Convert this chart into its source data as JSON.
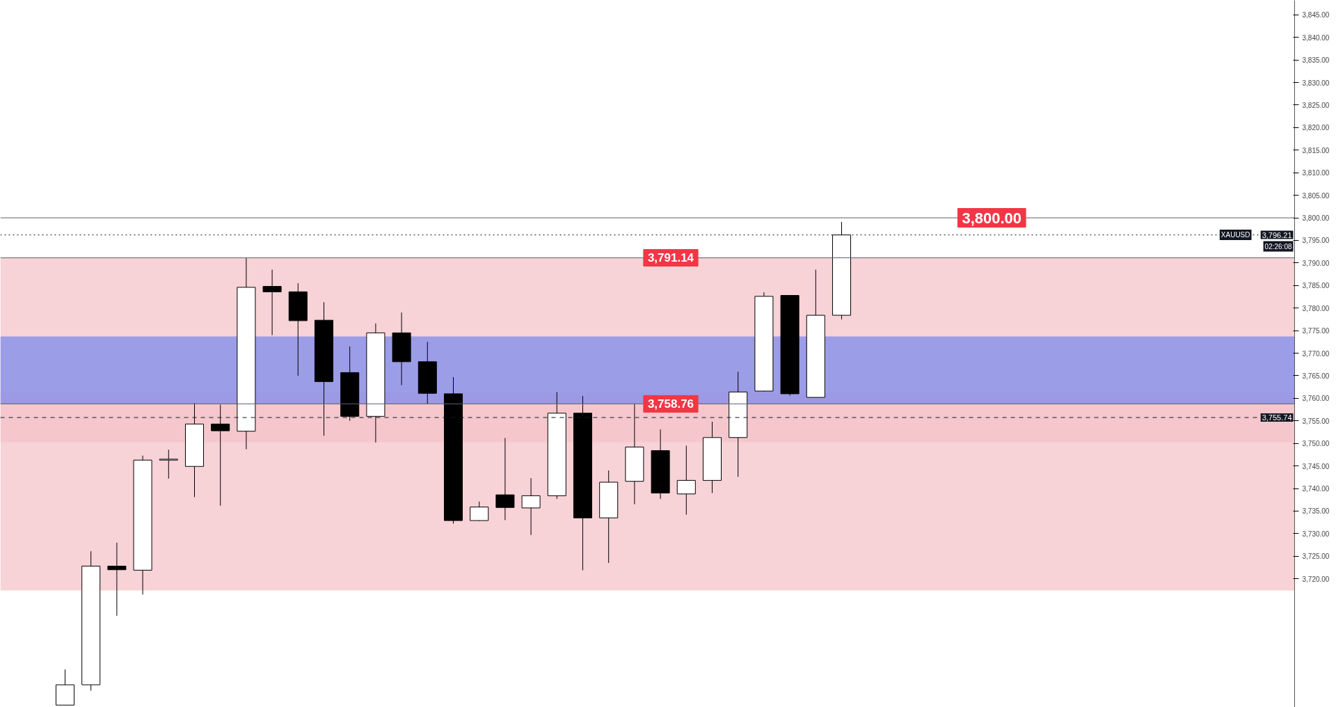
{
  "chart_data": {
    "type": "candlestick",
    "categories": [
      null,
      null,
      null,
      null,
      null,
      null,
      null,
      null,
      null,
      null,
      null,
      null,
      null,
      null,
      null,
      null,
      null,
      null,
      null,
      null,
      null,
      null,
      null,
      null,
      null,
      null,
      null,
      null,
      null,
      null,
      null,
      null,
      null,
      null,
      null,
      null,
      null,
      null,
      null,
      null,
      null,
      null,
      null,
      null,
      null,
      null,
      null,
      null,
      null,
      null
    ],
    "ohlc": [
      null,
      null,
      [
        3692.0,
        3699.9,
        3692.0,
        3696.5
      ],
      [
        3696.5,
        3726.1,
        3695.2,
        3722.8
      ],
      [
        3722.8,
        3728.0,
        3711.8,
        3722.0
      ],
      [
        3721.9,
        3747.3,
        3716.5,
        3746.3
      ],
      [
        3746.3,
        3748.6,
        3742.2,
        3746.5
      ],
      [
        3744.9,
        3758.9,
        3738.1,
        3754.3
      ],
      [
        3754.3,
        3758.6,
        3736.2,
        3752.8
      ],
      [
        3752.7,
        3791.14,
        3748.7,
        3784.6
      ],
      [
        3784.8,
        3788.5,
        3774.0,
        3783.6
      ],
      [
        3783.6,
        3785.5,
        3765.0,
        3777.2
      ],
      [
        3777.3,
        3781.3,
        3751.7,
        3763.7
      ],
      [
        3765.7,
        3771.5,
        3755.0,
        3756.0
      ],
      [
        3756.0,
        3776.6,
        3750.2,
        3774.5
      ],
      [
        3774.5,
        3779.0,
        3762.9,
        3768.1
      ],
      [
        3768.1,
        3772.5,
        3758.7,
        3761.1
      ],
      [
        3761.0,
        3764.7,
        3732.2,
        3732.9
      ],
      [
        3732.9,
        3737.1,
        3732.8,
        3735.9
      ],
      [
        3738.6,
        3751.2,
        3733.0,
        3735.8
      ],
      [
        3735.7,
        3742.3,
        3729.7,
        3738.4
      ],
      [
        3738.4,
        3761.4,
        3737.7,
        3756.7
      ],
      [
        3756.7,
        3760.5,
        3721.9,
        3733.5
      ],
      [
        3733.5,
        3744.0,
        3723.5,
        3741.4
      ],
      [
        3741.6,
        3758.76,
        3736.5,
        3749.2
      ],
      [
        3748.4,
        3753.1,
        3737.7,
        3739.0
      ],
      [
        3738.8,
        3749.5,
        3734.2,
        3741.8
      ],
      [
        3741.8,
        3754.8,
        3739.0,
        3751.3
      ],
      [
        3751.3,
        3765.9,
        3742.6,
        3761.4
      ],
      [
        3761.6,
        3783.5,
        3761.5,
        3782.6
      ],
      [
        3782.8,
        3782.8,
        3760.6,
        3761.0
      ],
      [
        3760.2,
        3788.5,
        3760.2,
        3778.4
      ],
      [
        3778.4,
        3799.1,
        3777.5,
        3796.21
      ],
      null,
      null,
      null,
      null,
      null,
      null,
      null,
      null,
      null,
      null,
      null,
      null,
      null,
      null,
      null,
      null,
      null
    ],
    "ylim": [
      3691.5,
      3848.2
    ],
    "yticks": [
      {
        "value": 3720,
        "label": "3,720.00"
      },
      {
        "value": 3725,
        "label": "3,725.00"
      },
      {
        "value": 3730,
        "label": "3,730.00"
      },
      {
        "value": 3735,
        "label": "3,735.00"
      },
      {
        "value": 3740,
        "label": "3,740.00"
      },
      {
        "value": 3745,
        "label": "3,745.00"
      },
      {
        "value": 3750,
        "label": "3,750.00"
      },
      {
        "value": 3755,
        "label": "3,755.00"
      },
      {
        "value": 3760,
        "label": "3,760.00"
      },
      {
        "value": 3765,
        "label": "3,765.00"
      },
      {
        "value": 3770,
        "label": "3,770.00"
      },
      {
        "value": 3775,
        "label": "3,775.00"
      },
      {
        "value": 3780,
        "label": "3,780.00"
      },
      {
        "value": 3785,
        "label": "3,785.00"
      },
      {
        "value": 3790,
        "label": "3,790.00"
      },
      {
        "value": 3795,
        "label": "3,795.00"
      },
      {
        "value": 3800,
        "label": "3,800.00"
      },
      {
        "value": 3805,
        "label": "3,805.00"
      },
      {
        "value": 3810,
        "label": "3,810.00"
      },
      {
        "value": 3815,
        "label": "3,815.00"
      },
      {
        "value": 3820,
        "label": "3,820.00"
      },
      {
        "value": 3825,
        "label": "3,825.00"
      },
      {
        "value": 3830,
        "label": "3,830.00"
      },
      {
        "value": 3835,
        "label": "3,835.00"
      },
      {
        "value": 3840,
        "label": "3,840.00"
      },
      {
        "value": 3845,
        "label": "3,845.00"
      }
    ],
    "bands": [
      {
        "axis": "y",
        "from": 3750.3,
        "to": 3791.14,
        "color": "#f4c3c8"
      },
      {
        "axis": "y",
        "from": 3717.4,
        "to": 3761.2,
        "color": "#f4c3c8"
      },
      {
        "axis": "y",
        "from": 3758.8,
        "to": 3773.7,
        "color": "#7d8bec"
      }
    ],
    "ref_lines": [
      {
        "axis": "y",
        "value": 3800,
        "label": "3,800.00",
        "color": "#5d606b"
      },
      {
        "axis": "y",
        "value": 3791.14,
        "label": "3,791.14",
        "color": "#5d606b"
      },
      {
        "axis": "y",
        "value": 3758.76,
        "label": "3,758.76",
        "color": "#5d606b"
      },
      {
        "axis": "y",
        "value": 3796.21,
        "label": "3,796.21",
        "color": "#131722",
        "line_style": "dotted"
      },
      {
        "axis": "y",
        "value": 3755.74,
        "label": "3,755.74",
        "color": "#131722",
        "line_style": "dashed"
      }
    ],
    "annotations": [
      {
        "text": "XAUUSD",
        "y": 3796.21
      },
      {
        "text": "02:26:08",
        "y": 3796.21
      }
    ],
    "grid": false
  }
}
